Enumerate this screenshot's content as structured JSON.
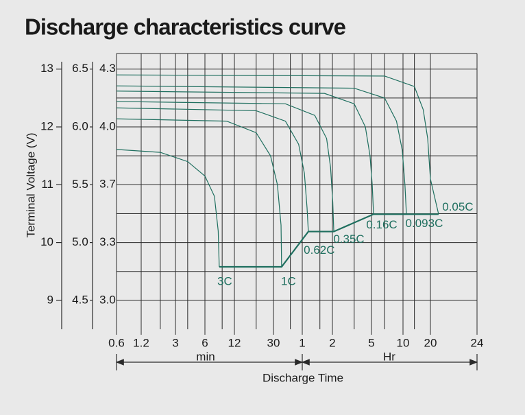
{
  "chart_data": {
    "type": "line",
    "title": "Discharge characteristics curve",
    "y_label": "Terminal Voltage (V)",
    "x_label": "Discharge Time",
    "x_units": [
      "min",
      "Hr"
    ],
    "xscale": "log",
    "xlim": [
      0.6,
      1440
    ],
    "xticks": [
      0.6,
      1.2,
      3,
      6,
      12,
      30,
      {
        "value": 60,
        "label": "1"
      },
      {
        "value": 120,
        "label": "2"
      },
      {
        "value": 300,
        "label": "5"
      },
      {
        "value": 600,
        "label": "10"
      },
      {
        "value": 1200,
        "label": "20"
      },
      {
        "value": 1440,
        "label": "24"
      }
    ],
    "x_minor_grid": [
      2,
      4,
      9,
      20,
      45,
      90,
      200,
      400,
      800
    ],
    "ylim": [
      8.5,
      13.27
    ],
    "yticks": [
      9,
      10,
      11,
      12,
      13
    ],
    "y_minor_grid": [
      9.5,
      10.5,
      11.5,
      12.5
    ],
    "y2lim": [
      4.25,
      6.635
    ],
    "y2ticks": [
      4.5,
      {
        "value": 5,
        "label": "5.0"
      },
      5.5,
      {
        "value": 6,
        "label": "6.0"
      },
      6.5
    ],
    "y3lim": [
      2.833,
      4.423
    ],
    "y3ticks": [
      {
        "value": 3,
        "label": "3.0"
      },
      {
        "value": 3.333,
        "label": "3.3"
      },
      {
        "value": 3.667,
        "label": "3.7"
      },
      {
        "value": 4,
        "label": "4.0"
      },
      {
        "value": 4.333,
        "label": "4.3"
      }
    ],
    "grid": true,
    "series": [
      {
        "name": "3C",
        "color": "#1f6f5f",
        "x": [
          0.6,
          2,
          4,
          6,
          7.5,
          8.2,
          8.4
        ],
        "values": [
          11.61,
          11.56,
          11.4,
          11.15,
          10.8,
          10.2,
          9.58
        ]
      },
      {
        "name": "1C",
        "color": "#1f6f5f",
        "x": [
          0.6,
          10,
          20,
          28,
          33,
          36,
          36.5
        ],
        "values": [
          12.14,
          12.1,
          11.9,
          11.5,
          11.0,
          10.3,
          9.58
        ]
      },
      {
        "name": "0.62C",
        "color": "#1f6f5f",
        "x": [
          0.6,
          20,
          40,
          55,
          63,
          67,
          69
        ],
        "values": [
          12.33,
          12.28,
          12.1,
          11.7,
          11.2,
          10.6,
          10.19
        ]
      },
      {
        "name": "0.35C",
        "color": "#1f6f5f",
        "x": [
          0.6,
          40,
          80,
          105,
          115,
          121,
          124
        ],
        "values": [
          12.44,
          12.4,
          12.2,
          11.8,
          11.3,
          10.7,
          10.19
        ]
      },
      {
        "name": "0.16C",
        "color": "#1f6f5f",
        "x": [
          0.6,
          100,
          200,
          260,
          290,
          305,
          314
        ],
        "values": [
          12.62,
          12.58,
          12.4,
          12.0,
          11.5,
          11.0,
          10.49
        ]
      },
      {
        "name": "0.093C",
        "color": "#1f6f5f",
        "x": [
          0.6,
          200,
          400,
          520,
          590,
          630,
          654
        ],
        "values": [
          12.71,
          12.67,
          12.5,
          12.1,
          11.6,
          11.0,
          10.49
        ]
      },
      {
        "name": "0.05C",
        "color": "#1f6f5f",
        "x": [
          0.6,
          400,
          800,
          1000,
          1120,
          1200,
          1239
        ],
        "values": [
          12.9,
          12.88,
          12.7,
          12.3,
          11.8,
          11.1,
          10.49
        ]
      }
    ],
    "end_line": {
      "color": "#1f6f5f",
      "x": [
        8.4,
        36.5,
        69,
        124,
        314,
        1239
      ],
      "values": [
        9.58,
        9.58,
        10.19,
        10.19,
        10.49,
        10.49
      ]
    }
  }
}
